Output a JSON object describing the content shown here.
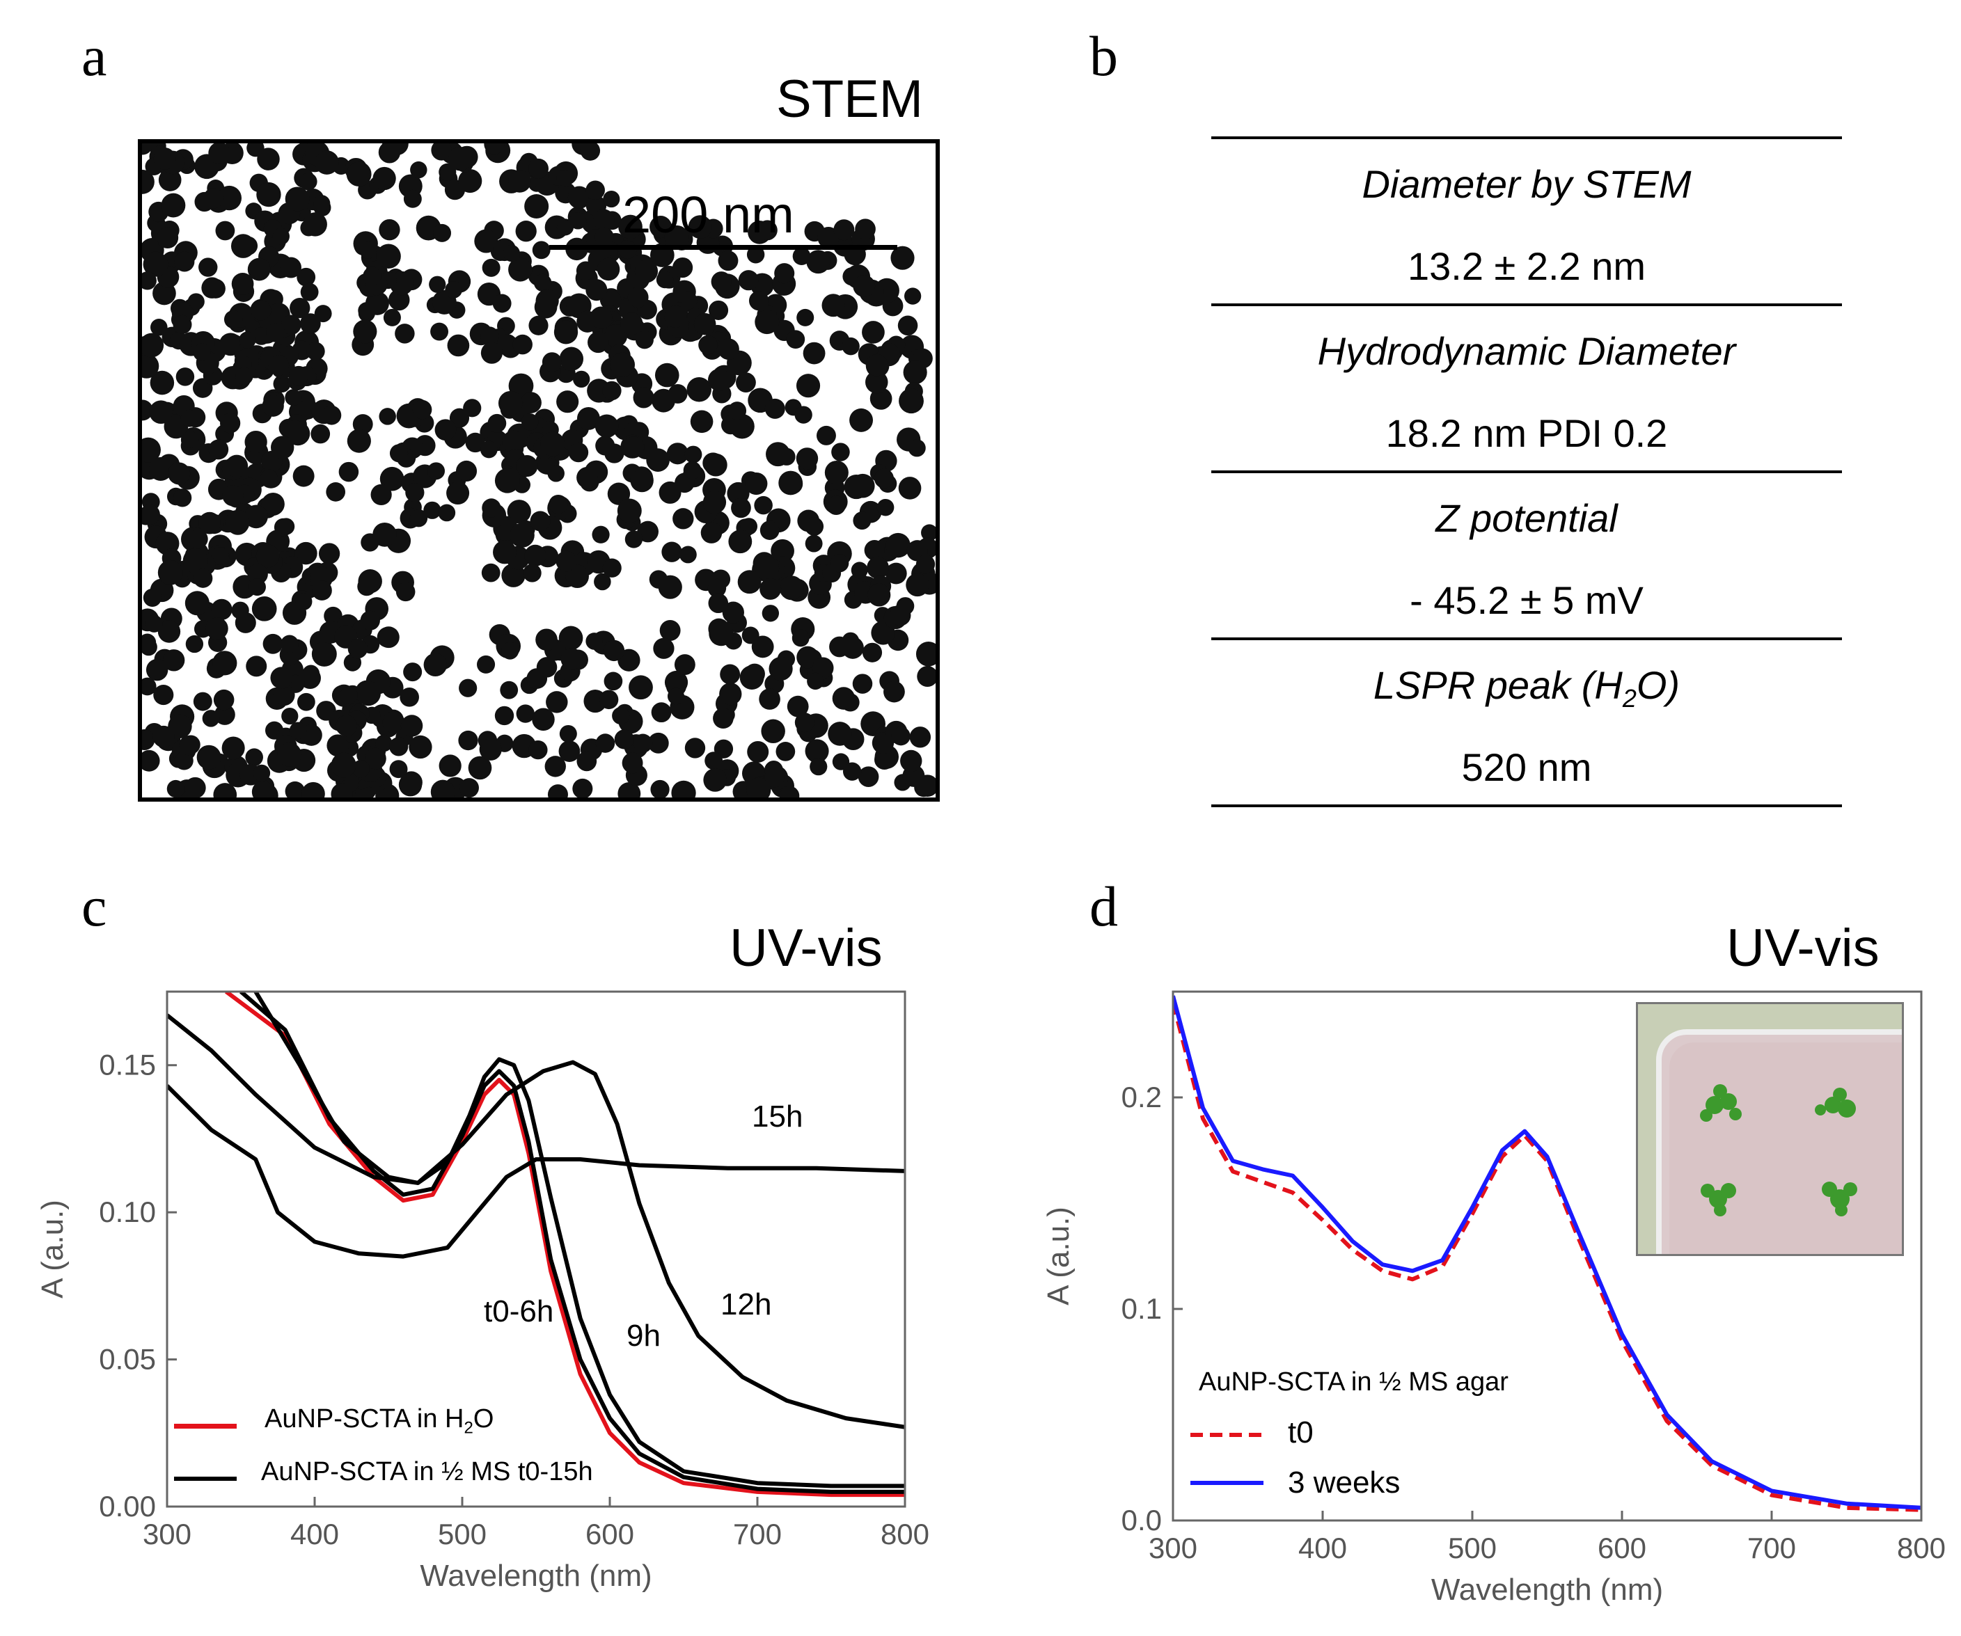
{
  "panels": {
    "a": {
      "letter": "a",
      "title": "STEM",
      "scale_bar_label": "200 nm"
    },
    "b": {
      "letter": "b",
      "rows": [
        {
          "property": "Diameter by STEM",
          "value": "13.2 ± 2.2 nm"
        },
        {
          "property": "Hydrodynamic Diameter",
          "value": "18.2 nm PDI 0.2"
        },
        {
          "property": "Z potential",
          "value": "- 45.2 ± 5 mV"
        },
        {
          "property_main": "LSPR peak (H",
          "property_sub": "2",
          "property_end": "O)",
          "value": "520 nm"
        }
      ]
    },
    "c": {
      "letter": "c",
      "title": "UV-vis",
      "curve_labels": {
        "c15h": "15h",
        "c12h": "12h",
        "c9h": "9h",
        "ct0": "t0-6h"
      },
      "legend": {
        "red_main": "AuNP-SCTA in H",
        "red_sub": "2",
        "red_end": "O",
        "black": "AuNP-SCTA in ½ MS t0-15h"
      }
    },
    "d": {
      "letter": "d",
      "title": "UV-vis",
      "legend_title": "AuNP-SCTA in ½ MS agar",
      "legend": {
        "red": "t0",
        "blue": "3 weeks"
      }
    }
  },
  "colors": {
    "red": "#e3121b",
    "blue": "#1a1aff",
    "black": "#000000"
  },
  "chart_data": [
    {
      "id": "c",
      "type": "line",
      "title": "UV-vis",
      "xlabel": "Wavelength (nm)",
      "ylabel": "A (a.u.)",
      "xlim": [
        300,
        800
      ],
      "ylim": [
        0,
        0.175
      ],
      "xticks": [
        300,
        400,
        500,
        600,
        700,
        800
      ],
      "xtick_labels": [
        "300",
        "400",
        "500",
        "600",
        "700",
        "800"
      ],
      "yticks": [
        0,
        0.05,
        0.1,
        0.15
      ],
      "ytick_labels": [
        "0.00",
        "0.05",
        "0.10",
        "0.15"
      ],
      "series": [
        {
          "name": "AuNP-SCTA in H2O",
          "color": "#e3121b",
          "x": [
            340,
            380,
            410,
            440,
            460,
            480,
            500,
            515,
            525,
            535,
            545,
            560,
            580,
            600,
            620,
            650,
            700,
            750,
            800
          ],
          "y": [
            0.175,
            0.16,
            0.13,
            0.112,
            0.104,
            0.106,
            0.124,
            0.14,
            0.145,
            0.14,
            0.12,
            0.08,
            0.045,
            0.025,
            0.015,
            0.008,
            0.005,
            0.004,
            0.004
          ]
        },
        {
          "name": "t0-6h",
          "color": "#000000",
          "x": [
            350,
            380,
            410,
            440,
            460,
            480,
            500,
            515,
            525,
            535,
            545,
            560,
            580,
            600,
            620,
            650,
            700,
            750,
            800
          ],
          "y": [
            0.175,
            0.162,
            0.132,
            0.114,
            0.106,
            0.108,
            0.126,
            0.143,
            0.148,
            0.143,
            0.124,
            0.084,
            0.05,
            0.03,
            0.018,
            0.01,
            0.006,
            0.005,
            0.005
          ]
        },
        {
          "name": "9h",
          "color": "#000000",
          "x": [
            360,
            390,
            420,
            450,
            470,
            490,
            505,
            515,
            525,
            535,
            545,
            560,
            580,
            600,
            620,
            650,
            700,
            750,
            800
          ],
          "y": [
            0.175,
            0.15,
            0.124,
            0.112,
            0.11,
            0.117,
            0.133,
            0.146,
            0.152,
            0.15,
            0.138,
            0.105,
            0.064,
            0.038,
            0.022,
            0.012,
            0.008,
            0.007,
            0.007
          ]
        },
        {
          "name": "12h",
          "color": "#000000",
          "x": [
            300,
            330,
            360,
            400,
            440,
            470,
            500,
            530,
            555,
            575,
            590,
            605,
            620,
            640,
            660,
            690,
            720,
            760,
            800
          ],
          "y": [
            0.167,
            0.155,
            0.14,
            0.122,
            0.112,
            0.11,
            0.123,
            0.14,
            0.148,
            0.151,
            0.147,
            0.13,
            0.103,
            0.076,
            0.058,
            0.044,
            0.036,
            0.03,
            0.027
          ]
        },
        {
          "name": "15h",
          "color": "#000000",
          "x": [
            300,
            330,
            360,
            375,
            400,
            430,
            460,
            490,
            510,
            530,
            550,
            580,
            620,
            680,
            740,
            800
          ],
          "y": [
            0.143,
            0.128,
            0.118,
            0.1,
            0.09,
            0.086,
            0.085,
            0.088,
            0.1,
            0.112,
            0.118,
            0.118,
            0.116,
            0.115,
            0.115,
            0.114
          ]
        }
      ]
    },
    {
      "id": "d",
      "type": "line",
      "title": "UV-vis",
      "xlabel": "Wavelength (nm)",
      "ylabel": "A (a.u.)",
      "xlim": [
        300,
        800
      ],
      "ylim": [
        0,
        0.25
      ],
      "xticks": [
        300,
        400,
        500,
        600,
        700,
        800
      ],
      "xtick_labels": [
        "300",
        "400",
        "500",
        "600",
        "700",
        "800"
      ],
      "yticks": [
        0,
        0.1,
        0.2
      ],
      "ytick_labels": [
        "0.0",
        "0.1",
        "0.2"
      ],
      "series": [
        {
          "name": "t0",
          "color": "#e3121b",
          "dash": true,
          "x": [
            300,
            320,
            340,
            360,
            380,
            400,
            420,
            440,
            460,
            480,
            500,
            520,
            535,
            550,
            570,
            600,
            630,
            660,
            700,
            750,
            800
          ],
          "y": [
            0.245,
            0.19,
            0.165,
            0.16,
            0.155,
            0.142,
            0.128,
            0.118,
            0.114,
            0.12,
            0.145,
            0.172,
            0.182,
            0.17,
            0.135,
            0.085,
            0.047,
            0.026,
            0.012,
            0.006,
            0.005
          ]
        },
        {
          "name": "3 weeks",
          "color": "#1a1aff",
          "x": [
            300,
            320,
            340,
            360,
            380,
            400,
            420,
            440,
            460,
            480,
            500,
            520,
            535,
            550,
            570,
            600,
            630,
            660,
            700,
            750,
            800
          ],
          "y": [
            0.248,
            0.195,
            0.17,
            0.166,
            0.163,
            0.148,
            0.132,
            0.121,
            0.118,
            0.123,
            0.148,
            0.175,
            0.184,
            0.172,
            0.138,
            0.088,
            0.05,
            0.028,
            0.014,
            0.008,
            0.006
          ]
        }
      ]
    }
  ]
}
